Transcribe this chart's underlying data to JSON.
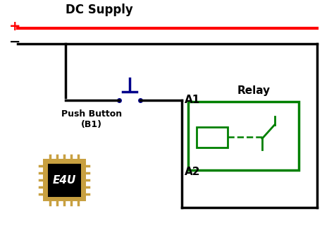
{
  "bg_color": "#ffffff",
  "dc_supply_text": "DC Supply",
  "push_button_text": "Push Button\n(B1)",
  "relay_text": "Relay",
  "a1_text": "A1",
  "a2_text": "A2",
  "plus_text": "+",
  "minus_text": "−",
  "e4u_text": "E4U",
  "red_line_color": "#ff0000",
  "black_color": "#000000",
  "blue_color": "#00008B",
  "green_color": "#008000",
  "wire_lw": 2.5
}
